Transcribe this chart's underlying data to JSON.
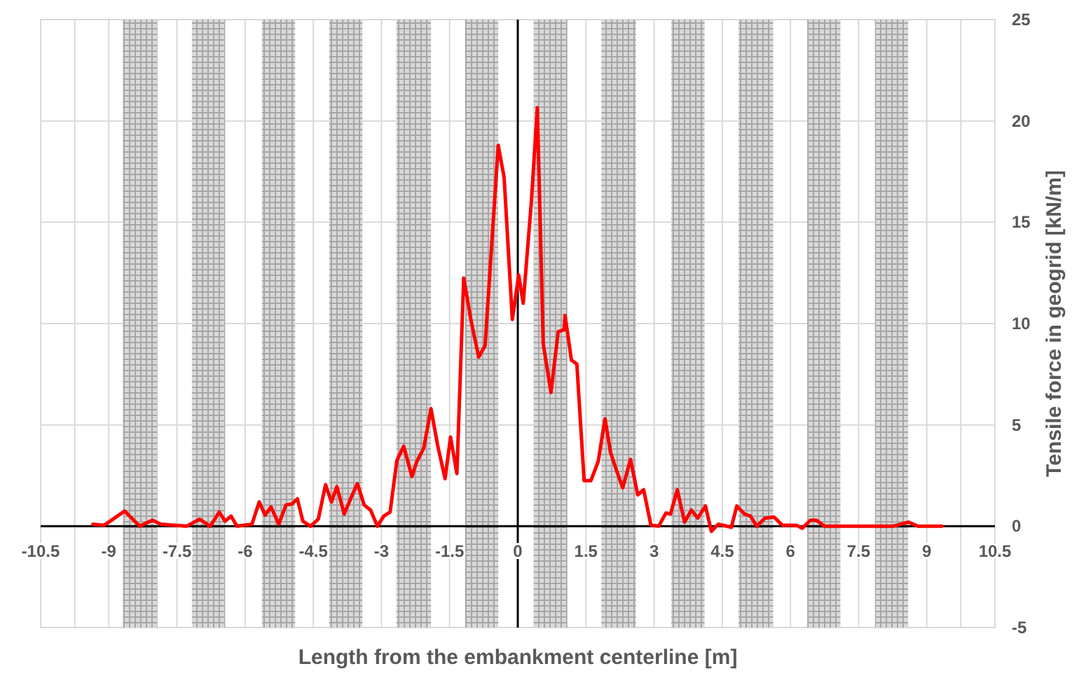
{
  "chart_data": {
    "type": "line",
    "xlabel": "Length from the embankment centerline [m]",
    "ylabel": "Tensile force in geogrid [kN/m]",
    "series": [
      {
        "color": "#ff0000",
        "x": [
          -9.35,
          -9.1,
          -8.65,
          -8.32,
          -8.04,
          -7.85,
          -7.29,
          -7.0,
          -6.77,
          -6.57,
          -6.44,
          -6.31,
          -6.18,
          -5.85,
          -5.69,
          -5.56,
          -5.43,
          -5.26,
          -5.1,
          -4.97,
          -4.85,
          -4.73,
          -4.56,
          -4.39,
          -4.23,
          -4.1,
          -3.98,
          -3.82,
          -3.67,
          -3.53,
          -3.38,
          -3.24,
          -3.09,
          -2.95,
          -2.81,
          -2.66,
          -2.51,
          -2.33,
          -2.22,
          -2.07,
          -1.91,
          -1.76,
          -1.6,
          -1.48,
          -1.34,
          -1.19,
          -1.02,
          -0.86,
          -0.72,
          -0.43,
          -0.3,
          -0.12,
          0.02,
          0.12,
          0.3,
          0.43,
          0.56,
          0.73,
          0.89,
          1.02,
          1.04,
          1.18,
          1.3,
          1.46,
          1.61,
          1.77,
          1.92,
          2.04,
          2.18,
          2.31,
          2.48,
          2.64,
          2.77,
          2.93,
          3.1,
          3.26,
          3.36,
          3.51,
          3.67,
          3.82,
          3.96,
          4.13,
          4.26,
          4.41,
          4.7,
          4.82,
          4.99,
          5.12,
          5.26,
          5.44,
          5.64,
          5.82,
          6.13,
          6.26,
          6.44,
          6.57,
          6.75,
          7.83,
          8.25,
          8.6,
          8.81,
          9.33
        ],
        "values": [
          0.1,
          0.05,
          0.75,
          0,
          0.3,
          0.1,
          0,
          0.35,
          0,
          0.7,
          0.25,
          0.5,
          0,
          0.1,
          1.2,
          0.55,
          0.95,
          0.1,
          1.05,
          1.1,
          1.35,
          0.25,
          0,
          0.35,
          2.05,
          1.2,
          1.95,
          0.6,
          1.4,
          2.1,
          1.05,
          0.8,
          0,
          0.5,
          0.7,
          3.25,
          3.95,
          2.45,
          3.2,
          3.85,
          5.8,
          3.95,
          2.35,
          4.4,
          2.6,
          12.25,
          10.05,
          8.35,
          8.9,
          18.8,
          17.2,
          10.2,
          12.4,
          11.0,
          16.05,
          20.65,
          9.0,
          6.6,
          9.6,
          9.7,
          10.4,
          8.2,
          8.0,
          2.25,
          2.25,
          3.2,
          5.3,
          3.65,
          2.7,
          1.9,
          3.3,
          1.55,
          1.8,
          0.05,
          0,
          0.65,
          0.6,
          1.8,
          0.2,
          0.8,
          0.4,
          1.0,
          -0.25,
          0.1,
          -0.05,
          1.0,
          0.6,
          0.5,
          0,
          0.4,
          0.45,
          0.05,
          0.05,
          -0.1,
          0.3,
          0.3,
          0,
          0,
          0,
          0.2,
          0,
          0
        ]
      }
    ],
    "xlim": [
      -10.5,
      10.5
    ],
    "xticks": [
      -10.5,
      {
        "value": -9.75,
        "label": null
      },
      -9,
      -7.5,
      -6,
      -4.5,
      -3,
      -1.5,
      0,
      1.5,
      3,
      4.5,
      6,
      7.5,
      9,
      {
        "value": 9.75,
        "label": null
      },
      10.5
    ],
    "ylim": [
      -5,
      25
    ],
    "yticks": [
      -5,
      0,
      5,
      10,
      15,
      20,
      25
    ],
    "grid": true,
    "marker": "none",
    "line_style": "solid",
    "ref_lines": [
      {
        "axis": "x",
        "value": 0,
        "color": "#000000"
      }
    ],
    "bands": [
      {
        "axis": "x",
        "from": -8.69,
        "to": -7.93,
        "color": "#a6a6a6"
      },
      {
        "axis": "x",
        "from": -7.17,
        "to": -6.44,
        "color": "#a6a6a6"
      },
      {
        "axis": "x",
        "from": -5.63,
        "to": -4.9,
        "color": "#a6a6a6"
      },
      {
        "axis": "x",
        "from": -4.15,
        "to": -3.42,
        "color": "#a6a6a6"
      },
      {
        "axis": "x",
        "from": -2.67,
        "to": -1.91,
        "color": "#a6a6a6"
      },
      {
        "axis": "x",
        "from": -1.16,
        "to": -0.43,
        "color": "#a6a6a6"
      },
      {
        "axis": "x",
        "from": 0.35,
        "to": 1.09,
        "color": "#a6a6a6"
      },
      {
        "axis": "x",
        "from": 1.84,
        "to": 2.6,
        "color": "#a6a6a6"
      },
      {
        "axis": "x",
        "from": 3.38,
        "to": 4.11,
        "color": "#a6a6a6"
      },
      {
        "axis": "x",
        "from": 4.86,
        "to": 5.62,
        "color": "#a6a6a6"
      },
      {
        "axis": "x",
        "from": 6.37,
        "to": 7.1,
        "color": "#a6a6a6"
      },
      {
        "axis": "x",
        "from": 7.86,
        "to": 8.59,
        "color": "#a6a6a6"
      }
    ]
  }
}
